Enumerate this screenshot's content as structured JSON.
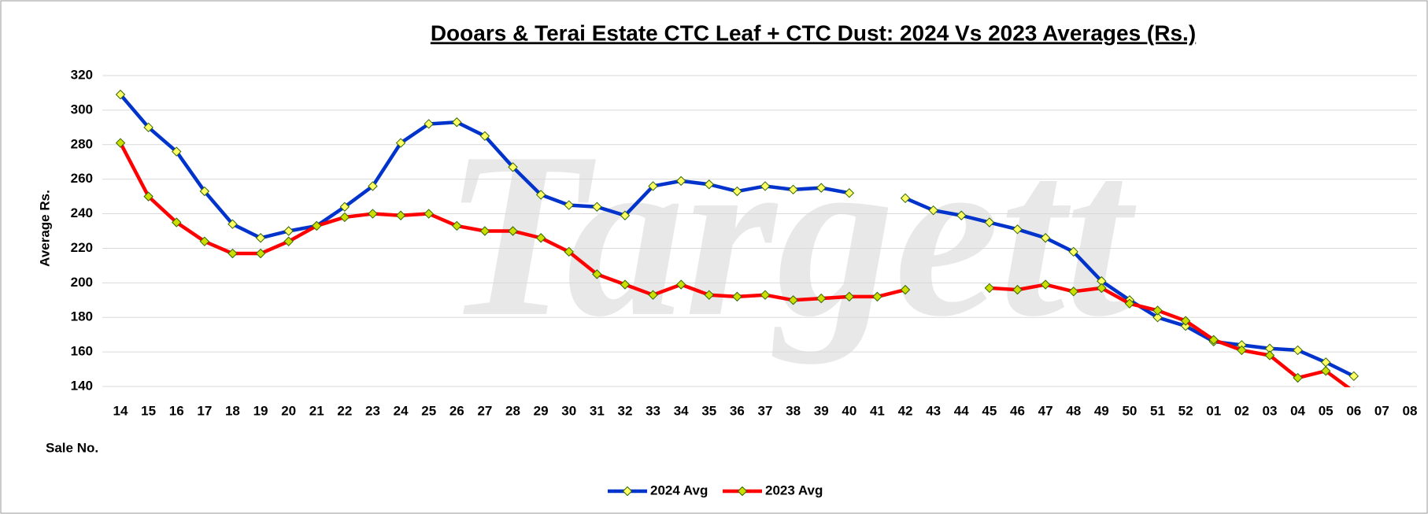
{
  "chart_data": {
    "type": "line",
    "title": "Dooars & Terai Estate CTC Leaf + CTC Dust: 2024 Vs 2023 Averages (Rs.)",
    "watermark": "Targett",
    "y_label": "Average Rs.",
    "x_label": "Sale No.",
    "categories": [
      "14",
      "15",
      "16",
      "17",
      "18",
      "19",
      "20",
      "21",
      "22",
      "23",
      "24",
      "25",
      "26",
      "27",
      "28",
      "29",
      "30",
      "31",
      "32",
      "33",
      "34",
      "35",
      "36",
      "37",
      "38",
      "39",
      "40",
      "41",
      "42",
      "43",
      "44",
      "45",
      "46",
      "47",
      "48",
      "49",
      "50",
      "51",
      "52",
      "01",
      "02",
      "03",
      "04",
      "05",
      "06",
      "07",
      "08"
    ],
    "series": [
      {
        "name": "2024 Avg",
        "color": "#0033cc",
        "marker_color": "#ffff66",
        "values": [
          309,
          290,
          276,
          253,
          234,
          226,
          230,
          233,
          244,
          256,
          281,
          292,
          293,
          285,
          267,
          251,
          245,
          244,
          239,
          256,
          259,
          257,
          253,
          256,
          254,
          255,
          252,
          null,
          249,
          242,
          239,
          235,
          231,
          226,
          218,
          201,
          190,
          180,
          175,
          166,
          164,
          162,
          161,
          154,
          146,
          null,
          null
        ]
      },
      {
        "name": "2023 Avg",
        "color": "#ff0000",
        "marker_color": "#ccdd00",
        "values": [
          281,
          250,
          235,
          224,
          217,
          217,
          224,
          233,
          238,
          240,
          239,
          240,
          233,
          230,
          230,
          226,
          218,
          205,
          199,
          193,
          199,
          193,
          192,
          193,
          190,
          191,
          192,
          192,
          196,
          null,
          null,
          197,
          196,
          199,
          195,
          197,
          188,
          184,
          178,
          167,
          161,
          158,
          145,
          149,
          137,
          null,
          null
        ]
      }
    ],
    "ylim": [
      140,
      320
    ],
    "yticks": [
      140,
      160,
      180,
      200,
      220,
      240,
      260,
      280,
      300,
      320
    ],
    "grid": true,
    "legend": "bottom"
  }
}
